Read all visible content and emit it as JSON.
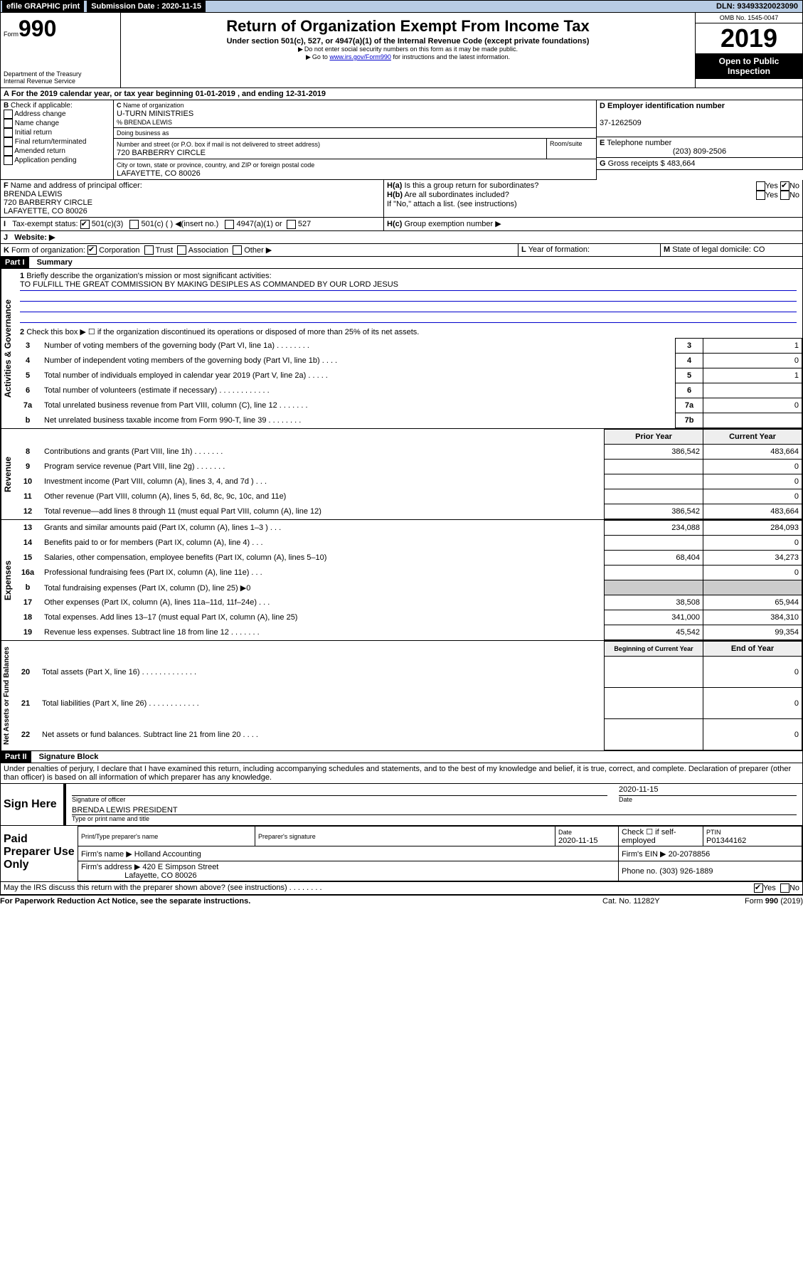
{
  "topbar": {
    "efile_label": "efile GRAPHIC print",
    "submission_label": "Submission Date : 2020-11-15",
    "dln_label": "DLN: 93493320023090"
  },
  "header": {
    "form_prefix": "Form",
    "form_number": "990",
    "title": "Return of Organization Exempt From Income Tax",
    "subtitle": "Under section 501(c), 527, or 4947(a)(1) of the Internal Revenue Code (except private foundations)",
    "note1": "Do not enter social security numbers on this form as it may be made public.",
    "note2_prefix": "Go to ",
    "note2_link": "www.irs.gov/Form990",
    "note2_suffix": " for instructions and the latest information.",
    "dept": "Department of the Treasury",
    "irs": "Internal Revenue Service",
    "omb": "OMB No. 1545-0047",
    "year": "2019",
    "open_inspect": "Open to Public Inspection"
  },
  "sectionA": {
    "text": "For the 2019 calendar year, or tax year beginning 01-01-2019    , and ending 12-31-2019"
  },
  "sectionB": {
    "label": "Check if applicable:",
    "addr_change": "Address change",
    "name_change": "Name change",
    "initial": "Initial return",
    "final": "Final return/terminated",
    "amended": "Amended return",
    "app_pending": "Application pending"
  },
  "sectionC": {
    "name_label": "Name of organization",
    "name": "U-TURN MINISTRIES",
    "pct": "% BRENDA LEWIS",
    "dba_label": "Doing business as",
    "street_label": "Number and street (or P.O. box if mail is not delivered to street address)",
    "room_label": "Room/suite",
    "street": "720 BARBERRY CIRCLE",
    "city_label": "City or town, state or province, country, and ZIP or foreign postal code",
    "city": "LAFAYETTE, CO  80026"
  },
  "sectionD": {
    "label": "Employer identification number",
    "value": "37-1262509"
  },
  "sectionE": {
    "label": "Telephone number",
    "value": "(203) 809-2506"
  },
  "sectionG": {
    "label": "Gross receipts $",
    "value": "483,664"
  },
  "sectionF": {
    "label": "Name and address of principal officer:",
    "name": "BRENDA LEWIS",
    "street": "720 BARBERRY CIRCLE",
    "city": "LAFAYETTE, CO  80026"
  },
  "sectionH": {
    "ha": "Is this a group return for subordinates?",
    "hb": "Are all subordinates included?",
    "hb_note": "If \"No,\" attach a list. (see instructions)",
    "hc": "Group exemption number ▶",
    "yes": "Yes",
    "no": "No"
  },
  "sectionI": {
    "label": "Tax-exempt status:",
    "opt1": "501(c)(3)",
    "opt2": "501(c) (   ) ◀(insert no.)",
    "opt3": "4947(a)(1) or",
    "opt4": "527"
  },
  "sectionJ": {
    "label": "Website: ▶"
  },
  "sectionK": {
    "label": "Form of organization:",
    "corp": "Corporation",
    "trust": "Trust",
    "assoc": "Association",
    "other": "Other ▶"
  },
  "sectionL": {
    "label": "Year of formation:"
  },
  "sectionM": {
    "label": "State of legal domicile: CO"
  },
  "part1": {
    "title": "Part I",
    "subtitle": "Summary",
    "group_gov": "Activities & Governance",
    "group_rev": "Revenue",
    "group_exp": "Expenses",
    "group_net": "Net Assets or Fund Balances",
    "line1_label": "Briefly describe the organization's mission or most significant activities:",
    "line1_value": "TO FULFILL THE GREAT COMMISSION BY MAKING DESIPLES AS COMMANDED BY OUR LORD JESUS",
    "line2": "Check this box ▶ ☐  if the organization discontinued its operations or disposed of more than 25% of its net assets.",
    "prior_hdr": "Prior Year",
    "current_hdr": "Current Year",
    "begin_hdr": "Beginning of Current Year",
    "end_hdr": "End of Year",
    "rows_gov": [
      {
        "n": "3",
        "t": "Number of voting members of the governing body (Part VI, line 1a)   .   .   .   .   .   .   .   .",
        "b": "3",
        "v": "1"
      },
      {
        "n": "4",
        "t": "Number of independent voting members of the governing body (Part VI, line 1b)   .   .   .   .",
        "b": "4",
        "v": "0"
      },
      {
        "n": "5",
        "t": "Total number of individuals employed in calendar year 2019 (Part V, line 2a)   .   .   .   .   .",
        "b": "5",
        "v": "1"
      },
      {
        "n": "6",
        "t": "Total number of volunteers (estimate if necessary)   .   .   .   .   .   .   .   .   .   .   .   .",
        "b": "6",
        "v": ""
      },
      {
        "n": "7a",
        "t": "Total unrelated business revenue from Part VIII, column (C), line 12   .   .   .   .   .   .   .",
        "b": "7a",
        "v": "0"
      },
      {
        "n": "b",
        "t": "Net unrelated business taxable income from Form 990-T, line 39   .   .   .   .   .   .   .   .",
        "b": "7b",
        "v": ""
      }
    ],
    "rows_rev": [
      {
        "n": "8",
        "t": "Contributions and grants (Part VIII, line 1h)   .   .   .   .   .   .   .",
        "p": "386,542",
        "c": "483,664"
      },
      {
        "n": "9",
        "t": "Program service revenue (Part VIII, line 2g)   .   .   .   .   .   .   .",
        "p": "",
        "c": "0"
      },
      {
        "n": "10",
        "t": "Investment income (Part VIII, column (A), lines 3, 4, and 7d )   .   .   .",
        "p": "",
        "c": "0"
      },
      {
        "n": "11",
        "t": "Other revenue (Part VIII, column (A), lines 5, 6d, 8c, 9c, 10c, and 11e)",
        "p": "",
        "c": "0"
      },
      {
        "n": "12",
        "t": "Total revenue—add lines 8 through 11 (must equal Part VIII, column (A), line 12)",
        "p": "386,542",
        "c": "483,664"
      }
    ],
    "rows_exp": [
      {
        "n": "13",
        "t": "Grants and similar amounts paid (Part IX, column (A), lines 1–3 )   .   .   .",
        "p": "234,088",
        "c": "284,093"
      },
      {
        "n": "14",
        "t": "Benefits paid to or for members (Part IX, column (A), line 4)   .   .   .",
        "p": "",
        "c": "0"
      },
      {
        "n": "15",
        "t": "Salaries, other compensation, employee benefits (Part IX, column (A), lines 5–10)",
        "p": "68,404",
        "c": "34,273"
      },
      {
        "n": "16a",
        "t": "Professional fundraising fees (Part IX, column (A), line 11e)   .   .   .",
        "p": "",
        "c": "0"
      },
      {
        "n": "b",
        "t": "Total fundraising expenses (Part IX, column (D), line 25) ▶0",
        "p": null,
        "c": null
      },
      {
        "n": "17",
        "t": "Other expenses (Part IX, column (A), lines 11a–11d, 11f–24e)   .   .   .",
        "p": "38,508",
        "c": "65,944"
      },
      {
        "n": "18",
        "t": "Total expenses. Add lines 13–17 (must equal Part IX, column (A), line 25)",
        "p": "341,000",
        "c": "384,310"
      },
      {
        "n": "19",
        "t": "Revenue less expenses. Subtract line 18 from line 12   .   .   .   .   .   .   .",
        "p": "45,542",
        "c": "99,354"
      }
    ],
    "rows_net": [
      {
        "n": "20",
        "t": "Total assets (Part X, line 16)   .   .   .   .   .   .   .   .   .   .   .   .   .",
        "p": "",
        "c": "0"
      },
      {
        "n": "21",
        "t": "Total liabilities (Part X, line 26)   .   .   .   .   .   .   .   .   .   .   .   .",
        "p": "",
        "c": "0"
      },
      {
        "n": "22",
        "t": "Net assets or fund balances. Subtract line 21 from line 20   .   .   .   .",
        "p": "",
        "c": "0"
      }
    ]
  },
  "part2": {
    "title": "Part II",
    "subtitle": "Signature Block",
    "perjury": "Under penalties of perjury, I declare that I have examined this return, including accompanying schedules and statements, and to the best of my knowledge and belief, it is true, correct, and complete. Declaration of preparer (other than officer) is based on all information of which preparer has any knowledge.",
    "sign_here": "Sign Here",
    "sig_officer": "Signature of officer",
    "date": "Date",
    "date_val": "2020-11-15",
    "name_title": "BRENDA LEWIS  PRESIDENT",
    "type_name": "Type or print name and title",
    "paid_prep": "Paid Preparer Use Only",
    "prep_name_label": "Print/Type preparer's name",
    "prep_sig_label": "Preparer's signature",
    "prep_date": "2020-11-15",
    "check_self": "Check ☐  if self-employed",
    "ptin_label": "PTIN",
    "ptin": "P01344162",
    "firm_name_label": "Firm's name     ▶",
    "firm_name": "Holland Accounting",
    "firm_ein_label": "Firm's EIN ▶",
    "firm_ein": "20-2078856",
    "firm_addr_label": "Firm's address ▶",
    "firm_addr1": "420 E Simpson Street",
    "firm_addr2": "Lafayette, CO  80026",
    "phone_label": "Phone no.",
    "phone": "(303) 926-1889",
    "discuss": "May the IRS discuss this return with the preparer shown above? (see instructions)    .    .    .    .    .    .    .    .",
    "discuss_yes": "Yes",
    "discuss_no": "No"
  },
  "footer": {
    "paperwork": "For Paperwork Reduction Act Notice, see the separate instructions.",
    "cat": "Cat. No. 11282Y",
    "form": "Form 990 (2019)"
  }
}
